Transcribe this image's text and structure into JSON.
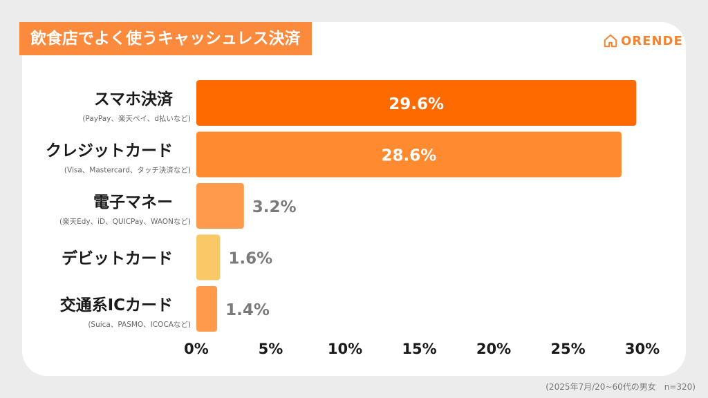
{
  "title": "飲食店でよく使うキャッシュレス決済",
  "logo": {
    "text": "ORENDE",
    "icon": "house-icon"
  },
  "footnote": "(2025年7月/20~60代の男女　n=320)",
  "colors": {
    "background": "#ececec",
    "title_band": "#fb8a3c",
    "logo": "#f4842f",
    "bar_dark": "#ff6a00",
    "bar_mid": "#ff8a30",
    "bar_light": "#ff9a4d",
    "bar_yellow": "#f9c968",
    "value_label_outside": "#7a7a7a"
  },
  "chart_data": {
    "type": "bar",
    "orientation": "horizontal",
    "categories": [
      {
        "label": "スマホ決済",
        "sublabel": "(PayPay、楽天ペイ、d払いなど)"
      },
      {
        "label": "クレジットカード",
        "sublabel": "(Visa、Mastercard、タッチ決済など)"
      },
      {
        "label": "電子マネー",
        "sublabel": "(楽天Edy、iD、QUICPay、WAONなど)"
      },
      {
        "label": "デビットカード",
        "sublabel": ""
      },
      {
        "label": "交通系ICカード",
        "sublabel": "(Suica、PASMO、ICOCAなど)"
      }
    ],
    "values": [
      29.6,
      28.6,
      3.2,
      1.6,
      1.4
    ],
    "value_labels": [
      "29.6%",
      "28.6%",
      "3.2%",
      "1.6%",
      "1.4%"
    ],
    "bar_colors": [
      "#ff6a00",
      "#ff8a30",
      "#ff9a4d",
      "#f9c968",
      "#ff9a4d"
    ],
    "xlim": [
      0,
      30
    ],
    "xticks": [
      0,
      5,
      10,
      15,
      20,
      25,
      30
    ],
    "xtick_labels": [
      "0%",
      "5%",
      "10%",
      "15%",
      "20%",
      "25%",
      "30%"
    ],
    "grid": false,
    "legend": "none"
  }
}
